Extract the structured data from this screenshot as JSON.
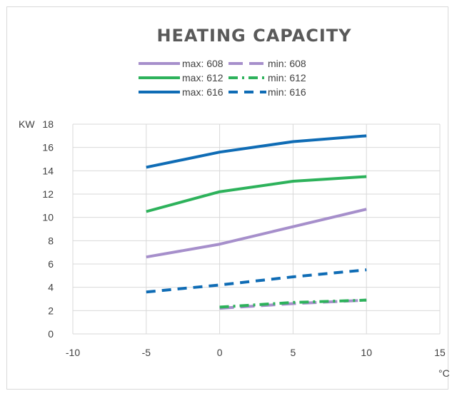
{
  "chart_data": {
    "type": "line",
    "title": "HEATING CAPACITY",
    "xlabel": "°C",
    "ylabel": "KW",
    "xlim": [
      -10,
      15
    ],
    "ylim": [
      0,
      18
    ],
    "xticks": [
      -10,
      -5,
      0,
      5,
      10,
      15
    ],
    "yticks": [
      0,
      2,
      4,
      6,
      8,
      10,
      12,
      14,
      16,
      18
    ],
    "grid": true,
    "legend_position": "top-center",
    "series": [
      {
        "name": "max: 608",
        "color": "#a68fcb",
        "dash": "solid",
        "x": [
          -5,
          0,
          5,
          10
        ],
        "y": [
          6.6,
          7.7,
          9.2,
          10.7
        ]
      },
      {
        "name": "min: 608",
        "color": "#a68fcb",
        "dash": "longdash",
        "x": [
          0,
          5,
          10
        ],
        "y": [
          2.2,
          2.6,
          2.9
        ]
      },
      {
        "name": "max: 612",
        "color": "#2db25b",
        "dash": "solid",
        "x": [
          -5,
          0,
          5,
          10
        ],
        "y": [
          10.5,
          12.2,
          13.1,
          13.5
        ]
      },
      {
        "name": "min: 612",
        "color": "#2db25b",
        "dash": "dashdot",
        "x": [
          0,
          5,
          10
        ],
        "y": [
          2.3,
          2.7,
          2.9
        ]
      },
      {
        "name": "max: 616",
        "color": "#0f6cb5",
        "dash": "solid",
        "x": [
          -5,
          0,
          5,
          10
        ],
        "y": [
          14.3,
          15.6,
          16.5,
          17.0
        ]
      },
      {
        "name": "min: 616",
        "color": "#0f6cb5",
        "dash": "dash",
        "x": [
          -5,
          0,
          5,
          10
        ],
        "y": [
          3.6,
          4.2,
          4.9,
          5.5
        ]
      }
    ]
  }
}
